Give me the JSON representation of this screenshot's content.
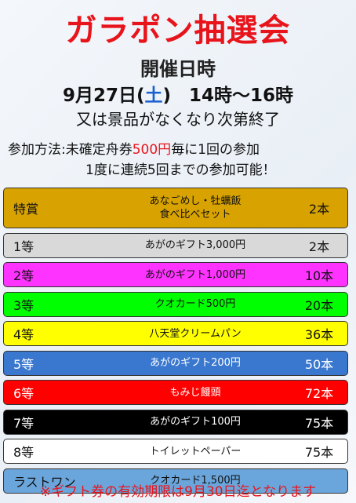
{
  "header": {
    "title": "ガラポン抽選会",
    "date_heading": "開催日時",
    "date_line": [
      "9月27日(",
      "土",
      ")　14時～16時"
    ],
    "note": "又は景品がなくなり次第終了"
  },
  "participation": {
    "label": "参加方法:",
    "line1": [
      "未確定舟券",
      "500円",
      "毎に1回の参加"
    ],
    "line2": "1度に連続5回までの参加可能！"
  },
  "prizes": [
    {
      "rank": "特賞",
      "prize": [
        "あなごめし・牡蠣飯",
        "食べ比べセット"
      ],
      "count": "2本"
    },
    {
      "rank": "1等",
      "prize": [
        "あがのギフト3,000円"
      ],
      "count": "2本"
    },
    {
      "rank": "2等",
      "prize": [
        "あがのギフト1,000円"
      ],
      "count": "10本"
    },
    {
      "rank": "3等",
      "prize": [
        "クオカード500円"
      ],
      "count": "20本"
    },
    {
      "rank": "4等",
      "prize": [
        "八天堂クリームパン"
      ],
      "count": "36本"
    },
    {
      "rank": "5等",
      "prize": [
        "あがのギフト200円"
      ],
      "count": "50本"
    },
    {
      "rank": "6等",
      "prize": [
        "もみじ饅頭"
      ],
      "count": "72本"
    },
    {
      "rank": "7等",
      "prize": [
        "あがのギフト100円"
      ],
      "count": "75本"
    },
    {
      "rank": "8等",
      "prize": [
        "トイレットペーパー"
      ],
      "count": "75本"
    },
    {
      "rank": "ラストワン",
      "prize": [
        "クオカード1,500円"
      ]
    }
  ],
  "footer": "※ギフト券の有効期限は9月30日迄となります"
}
